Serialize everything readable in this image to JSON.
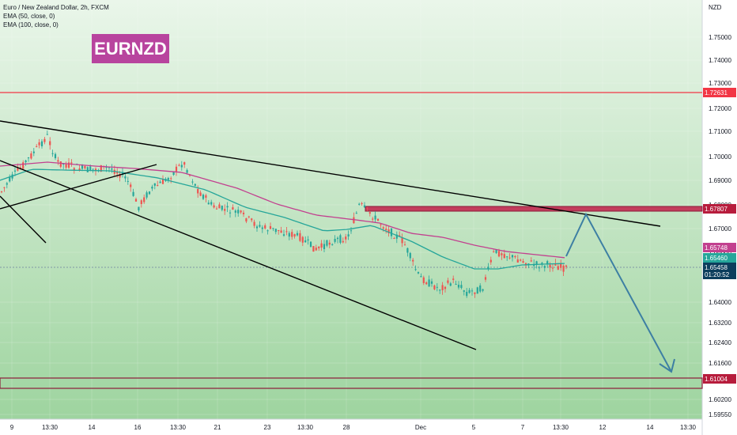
{
  "legend": {
    "symbol": "Euro / New Zealand Dollar, 2h, FXCM",
    "ema50": "EMA (50, close, 0)",
    "ema100": "EMA (100, close, 0)"
  },
  "badge": "EURNZD",
  "chart_data": {
    "type": "candlestick",
    "currency_label": "NZD",
    "yticks": [
      "1.75000",
      "1.74000",
      "1.73000",
      "1.72000",
      "1.71000",
      "1.70000",
      "1.69000",
      "1.68000",
      "1.67000",
      "1.66000",
      "1.64000",
      "1.63200",
      "1.62400",
      "1.61600",
      "1.60200",
      "1.59550"
    ],
    "xticks": [
      "9",
      "13:30",
      "14",
      "16",
      "13:30",
      "21",
      "23",
      "13:30",
      "28",
      "Dec",
      "5",
      "7",
      "13:30",
      "12",
      "14",
      "13:30"
    ],
    "levels": [
      {
        "label": "1.72631",
        "color": "#f23645",
        "kind": "resistance-line"
      },
      {
        "label": "1.67807",
        "color": "#b71c3c",
        "kind": "resistance-zone"
      },
      {
        "label": "1.61004",
        "color": "#b71c3c",
        "kind": "support-zone"
      }
    ],
    "price_tags": [
      {
        "label": "1.65748",
        "color": "#c2408f"
      },
      {
        "label": "1.65460",
        "color": "#26a69a"
      },
      {
        "label": "1.65458",
        "color": "#0c3d5c"
      },
      {
        "label": "01:20:52",
        "color": "#0c3d5c"
      }
    ],
    "ema_colors": {
      "ema50": "#26a69a",
      "ema100": "#c2408f"
    },
    "up_color": "#26a69a",
    "down_color": "#ef5350",
    "projection_color": "#3d7fa3"
  }
}
